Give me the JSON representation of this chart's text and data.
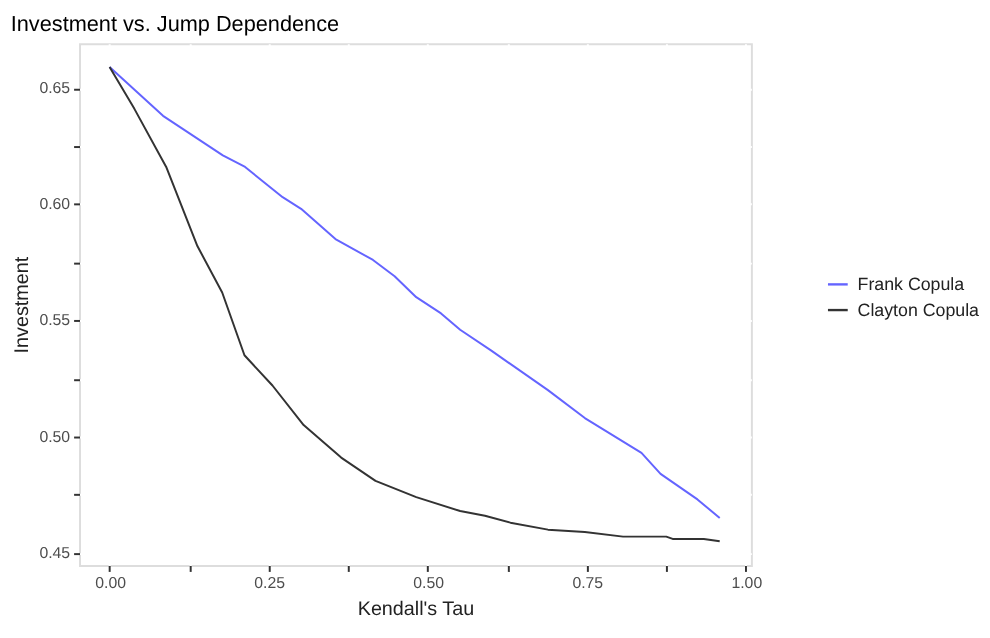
{
  "chart_data": {
    "type": "line",
    "title": "Investment vs. Jump Dependence",
    "xlabel": "Kendall's Tau",
    "ylabel": "Investment",
    "xlim": [
      -0.048,
      1.008
    ],
    "xticks": [
      {
        "value": 0,
        "label": "0.00"
      },
      {
        "value": 0.125,
        "label": null
      },
      0.25,
      {
        "value": 0.375,
        "label": null
      },
      {
        "value": 0.5,
        "label": "0.50"
      },
      {
        "value": 0.625,
        "label": null
      },
      0.75,
      {
        "value": 0.875,
        "label": null
      },
      {
        "value": 1,
        "label": "1.00"
      }
    ],
    "ylim": [
      0.4448,
      0.6692
    ],
    "yticks": [
      0.45,
      {
        "value": 0.475,
        "label": null
      },
      {
        "value": 0.5,
        "label": "0.50"
      },
      {
        "value": 0.525,
        "label": null
      },
      0.55,
      {
        "value": 0.575,
        "label": null
      },
      {
        "value": 0.6,
        "label": "0.60"
      },
      {
        "value": 0.625,
        "label": null
      },
      0.65
    ],
    "grid": true,
    "legend": "right",
    "line_style": "solid",
    "marker": "none",
    "series": [
      {
        "name": "Frank Copula",
        "color": "#6464ff",
        "x": [
          0,
          0.084,
          0.178,
          0.213,
          0.272,
          0.301,
          0.355,
          0.414,
          0.448,
          0.482,
          0.521,
          0.551,
          0.6,
          0.689,
          0.747,
          0.836,
          0.866,
          0.924,
          0.959
        ],
        "values": [
          0.659,
          0.638,
          0.621,
          0.616,
          0.603,
          0.598,
          0.585,
          0.576,
          0.569,
          0.56,
          0.553,
          0.546,
          0.537,
          0.52,
          0.508,
          0.493,
          0.484,
          0.473,
          0.465
        ]
      },
      {
        "name": "Clayton Copula",
        "color": "#333333",
        "x": [
          0,
          0.039,
          0.089,
          0.138,
          0.177,
          0.212,
          0.256,
          0.305,
          0.364,
          0.418,
          0.482,
          0.551,
          0.59,
          0.63,
          0.689,
          0.747,
          0.807,
          0.875,
          0.885,
          0.934,
          0.959
        ],
        "values": [
          0.659,
          0.641,
          0.616,
          0.582,
          0.562,
          0.535,
          0.522,
          0.505,
          0.491,
          0.481,
          0.474,
          0.468,
          0.466,
          0.463,
          0.46,
          0.459,
          0.457,
          0.457,
          0.456,
          0.456,
          0.455
        ]
      }
    ]
  }
}
